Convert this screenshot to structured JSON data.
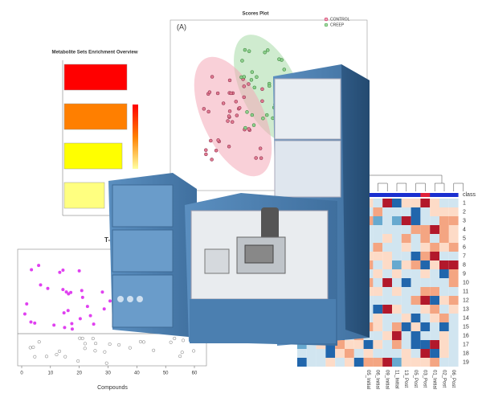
{
  "enrichment": {
    "title": "Metabolite Sets Enrichment Overview"
  },
  "scores_plot": {
    "title": "Scores Plot",
    "panel": "(A)",
    "legend": [
      "CONTROL",
      "CREEP"
    ]
  },
  "scatter": {
    "title": "T-",
    "x_label": "Compounds",
    "xticks": [
      0,
      10,
      20,
      30,
      40,
      50,
      60
    ]
  },
  "heatmap": {
    "class_label": "class",
    "rows": [
      "1",
      "2",
      "3",
      "4",
      "5",
      "6",
      "7",
      "8",
      "9",
      "10",
      "11",
      "12",
      "13",
      "14",
      "15",
      "16",
      "17",
      "18",
      "19"
    ],
    "columns": [
      "05_Initial",
      "06_Initial",
      "09_Initial",
      "11_Initial",
      "13_Post",
      "05_Post",
      "03_Post",
      "01_Initial",
      "02_Post",
      "06_Post"
    ]
  }
}
